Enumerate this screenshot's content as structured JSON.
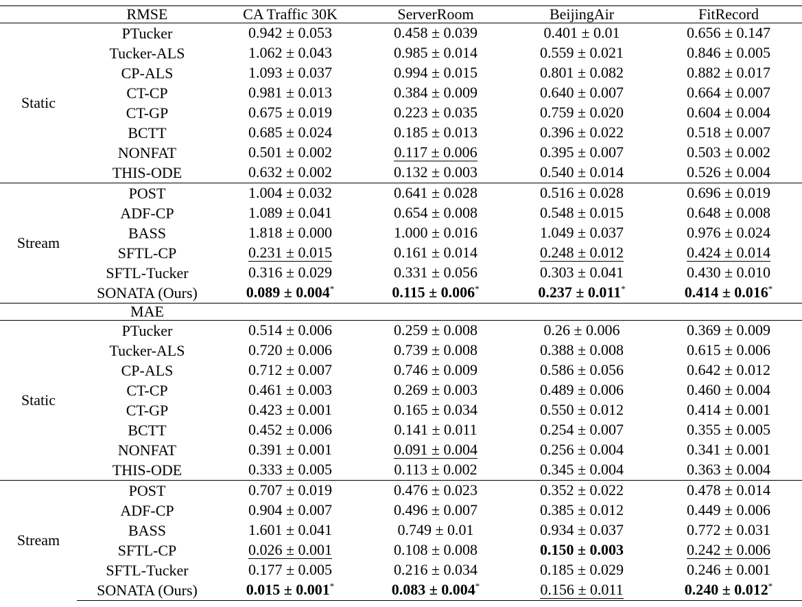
{
  "columns": [
    "CA Traffic 30K",
    "ServerRoom",
    "BeijingAir",
    "FitRecord"
  ],
  "sections": [
    {
      "metric": "RMSE",
      "show_columns": true,
      "groups": [
        {
          "label": "Static",
          "rows": [
            {
              "method": "PTucker",
              "cells": [
                {
                  "v": "0.942 ± 0.053"
                },
                {
                  "v": "0.458 ± 0.039"
                },
                {
                  "v": "0.401 ± 0.01"
                },
                {
                  "v": "0.656 ± 0.147"
                }
              ]
            },
            {
              "method": "Tucker-ALS",
              "cells": [
                {
                  "v": "1.062 ± 0.043"
                },
                {
                  "v": "0.985 ± 0.014"
                },
                {
                  "v": "0.559 ± 0.021"
                },
                {
                  "v": "0.846 ± 0.005"
                }
              ]
            },
            {
              "method": "CP-ALS",
              "cells": [
                {
                  "v": "1.093 ± 0.037"
                },
                {
                  "v": "0.994 ± 0.015"
                },
                {
                  "v": "0.801 ± 0.082"
                },
                {
                  "v": "0.882 ± 0.017"
                }
              ]
            },
            {
              "method": "CT-CP",
              "cells": [
                {
                  "v": "0.981 ± 0.013"
                },
                {
                  "v": "0.384 ± 0.009"
                },
                {
                  "v": "0.640 ± 0.007"
                },
                {
                  "v": "0.664 ± 0.007"
                }
              ]
            },
            {
              "method": "CT-GP",
              "cells": [
                {
                  "v": "0.675 ± 0.019"
                },
                {
                  "v": "0.223 ± 0.035"
                },
                {
                  "v": "0.759 ± 0.020"
                },
                {
                  "v": "0.604 ± 0.004"
                }
              ]
            },
            {
              "method": "BCTT",
              "cells": [
                {
                  "v": "0.685 ± 0.024"
                },
                {
                  "v": "0.185 ± 0.013"
                },
                {
                  "v": "0.396 ± 0.022"
                },
                {
                  "v": "0.518 ± 0.007"
                }
              ]
            },
            {
              "method": "NONFAT",
              "cells": [
                {
                  "v": "0.501 ± 0.002"
                },
                {
                  "v": "0.117 ± 0.006",
                  "underline": true
                },
                {
                  "v": "0.395 ± 0.007"
                },
                {
                  "v": "0.503 ± 0.002"
                }
              ]
            },
            {
              "method": "THIS-ODE",
              "cells": [
                {
                  "v": "0.632 ± 0.002"
                },
                {
                  "v": "0.132 ± 0.003"
                },
                {
                  "v": "0.540 ± 0.014"
                },
                {
                  "v": "0.526 ± 0.004"
                }
              ]
            }
          ]
        },
        {
          "label": "Stream",
          "rows": [
            {
              "method": "POST",
              "cells": [
                {
                  "v": "1.004 ± 0.032"
                },
                {
                  "v": "0.641 ± 0.028"
                },
                {
                  "v": "0.516 ± 0.028"
                },
                {
                  "v": "0.696 ± 0.019"
                }
              ]
            },
            {
              "method": "ADF-CP",
              "cells": [
                {
                  "v": "1.089 ± 0.041"
                },
                {
                  "v": "0.654 ± 0.008"
                },
                {
                  "v": "0.548 ± 0.015"
                },
                {
                  "v": "0.648 ± 0.008"
                }
              ]
            },
            {
              "method": "BASS",
              "cells": [
                {
                  "v": "1.818 ± 0.000"
                },
                {
                  "v": "1.000 ± 0.016"
                },
                {
                  "v": "1.049 ± 0.037"
                },
                {
                  "v": "0.976 ± 0.024"
                }
              ]
            },
            {
              "method": "SFTL-CP",
              "cells": [
                {
                  "v": "0.231 ± 0.015",
                  "underline": true
                },
                {
                  "v": "0.161 ± 0.014"
                },
                {
                  "v": "0.248 ± 0.012",
                  "underline": true
                },
                {
                  "v": "0.424 ± 0.014",
                  "underline": true
                }
              ]
            },
            {
              "method": "SFTL-Tucker",
              "cells": [
                {
                  "v": "0.316 ± 0.029"
                },
                {
                  "v": "0.331 ± 0.056"
                },
                {
                  "v": "0.303 ± 0.041"
                },
                {
                  "v": "0.430 ± 0.010"
                }
              ]
            },
            {
              "method": "SONATA (Ours)",
              "cells": [
                {
                  "v": "0.089 ± 0.004",
                  "bold": true,
                  "mark": "*"
                },
                {
                  "v": "0.115 ± 0.006",
                  "bold": true,
                  "mark": "*"
                },
                {
                  "v": "0.237 ± 0.011",
                  "bold": true,
                  "mark": "*"
                },
                {
                  "v": "0.414 ± 0.016",
                  "bold": true,
                  "mark": "*"
                }
              ]
            }
          ]
        }
      ]
    },
    {
      "metric": "MAE",
      "show_columns": false,
      "groups": [
        {
          "label": "Static",
          "rows": [
            {
              "method": "PTucker",
              "cells": [
                {
                  "v": "0.514 ± 0.006"
                },
                {
                  "v": "0.259 ± 0.008"
                },
                {
                  "v": "0.26 ± 0.006"
                },
                {
                  "v": "0.369 ± 0.009"
                }
              ]
            },
            {
              "method": "Tucker-ALS",
              "cells": [
                {
                  "v": "0.720 ± 0.006"
                },
                {
                  "v": "0.739 ± 0.008"
                },
                {
                  "v": "0.388 ± 0.008"
                },
                {
                  "v": "0.615 ± 0.006"
                }
              ]
            },
            {
              "method": "CP-ALS",
              "cells": [
                {
                  "v": "0.712 ± 0.007"
                },
                {
                  "v": "0.746 ± 0.009"
                },
                {
                  "v": "0.586 ± 0.056"
                },
                {
                  "v": "0.642 ± 0.012"
                }
              ]
            },
            {
              "method": "CT-CP",
              "cells": [
                {
                  "v": "0.461 ± 0.003"
                },
                {
                  "v": "0.269 ± 0.003"
                },
                {
                  "v": "0.489 ± 0.006"
                },
                {
                  "v": "0.460 ± 0.004"
                }
              ]
            },
            {
              "method": "CT-GP",
              "cells": [
                {
                  "v": "0.423 ± 0.001"
                },
                {
                  "v": "0.165 ± 0.034"
                },
                {
                  "v": "0.550 ± 0.012"
                },
                {
                  "v": "0.414 ± 0.001"
                }
              ]
            },
            {
              "method": "BCTT",
              "cells": [
                {
                  "v": "0.452 ± 0.006"
                },
                {
                  "v": "0.141 ± 0.011"
                },
                {
                  "v": "0.254 ± 0.007"
                },
                {
                  "v": "0.355 ± 0.005"
                }
              ]
            },
            {
              "method": "NONFAT",
              "cells": [
                {
                  "v": "0.391 ± 0.001"
                },
                {
                  "v": "0.091 ± 0.004",
                  "underline": true
                },
                {
                  "v": "0.256 ± 0.004"
                },
                {
                  "v": "0.341 ± 0.001"
                }
              ]
            },
            {
              "method": "THIS-ODE",
              "cells": [
                {
                  "v": "0.333 ± 0.005"
                },
                {
                  "v": "0.113 ± 0.002"
                },
                {
                  "v": "0.345 ± 0.004"
                },
                {
                  "v": "0.363 ± 0.004"
                }
              ]
            }
          ]
        },
        {
          "label": "Stream",
          "rows": [
            {
              "method": "POST",
              "cells": [
                {
                  "v": "0.707 ± 0.019"
                },
                {
                  "v": "0.476 ± 0.023"
                },
                {
                  "v": "0.352 ± 0.022"
                },
                {
                  "v": "0.478 ± 0.014"
                }
              ]
            },
            {
              "method": "ADF-CP",
              "cells": [
                {
                  "v": "0.904 ± 0.007"
                },
                {
                  "v": "0.496 ± 0.007"
                },
                {
                  "v": "0.385 ± 0.012"
                },
                {
                  "v": "0.449 ± 0.006"
                }
              ]
            },
            {
              "method": "BASS",
              "cells": [
                {
                  "v": "1.601 ± 0.041"
                },
                {
                  "v": "0.749 ± 0.01"
                },
                {
                  "v": "0.934 ± 0.037"
                },
                {
                  "v": "0.772 ± 0.031"
                }
              ]
            },
            {
              "method": "SFTL-CP",
              "cells": [
                {
                  "v": "0.026 ± 0.001",
                  "underline": true
                },
                {
                  "v": "0.108 ± 0.008"
                },
                {
                  "v": "0.150 ± 0.003",
                  "bold": true
                },
                {
                  "v": "0.242 ± 0.006",
                  "underline": true
                }
              ]
            },
            {
              "method": "SFTL-Tucker",
              "cells": [
                {
                  "v": "0.177 ± 0.005"
                },
                {
                  "v": "0.216 ± 0.034"
                },
                {
                  "v": "0.185 ± 0.029"
                },
                {
                  "v": "0.246 ± 0.001"
                }
              ]
            },
            {
              "method": "SONATA (Ours)",
              "cells": [
                {
                  "v": "0.015 ± 0.001",
                  "bold": true,
                  "mark": "*"
                },
                {
                  "v": "0.083 ± 0.004",
                  "bold": true,
                  "mark": "*"
                },
                {
                  "v": "0.156 ± 0.011",
                  "underline": true
                },
                {
                  "v": "0.240 ± 0.012",
                  "bold": true,
                  "mark": "*"
                }
              ]
            }
          ]
        }
      ]
    }
  ]
}
